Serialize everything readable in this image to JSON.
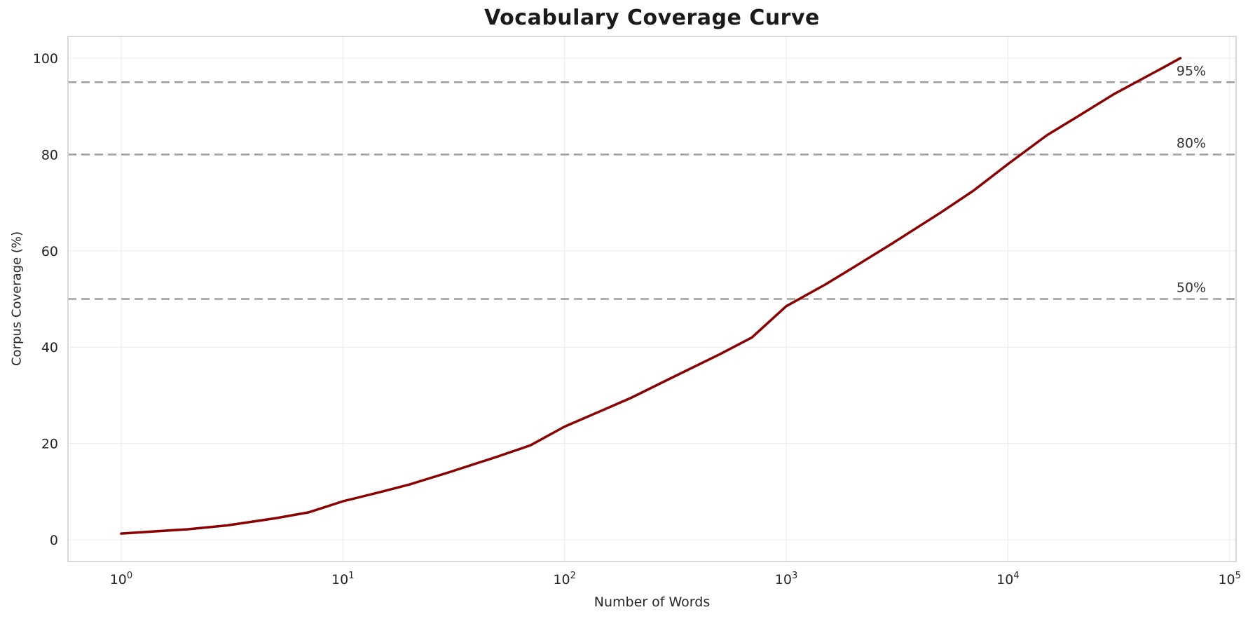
{
  "figure": {
    "title": "Vocabulary Coverage Curve"
  },
  "chart_data": {
    "type": "line",
    "title": "Vocabulary Coverage Curve",
    "xlabel": "Number of Words",
    "ylabel": "Corpus Coverage (%)",
    "x_scale": "log",
    "xlim": [
      0.5754,
      107000
    ],
    "ylim": [
      -4.5,
      104.5
    ],
    "x_ticks": [
      1,
      10,
      100,
      1000,
      10000,
      100000
    ],
    "y_ticks": [
      0,
      20,
      40,
      60,
      80,
      100
    ],
    "grid": true,
    "legend": false,
    "series": [
      {
        "name": "vocabulary-coverage",
        "color": "#8B0000",
        "width": 3.5,
        "x": [
          1,
          2,
          3,
          5,
          7,
          10,
          15,
          20,
          30,
          50,
          70,
          100,
          150,
          200,
          300,
          500,
          700,
          1000,
          1500,
          2000,
          3000,
          5000,
          7000,
          10000,
          15000,
          20000,
          30000,
          50000,
          60000
        ],
        "y": [
          1.3,
          2.2,
          3.0,
          4.5,
          5.7,
          8.0,
          10.0,
          11.5,
          14.0,
          17.3,
          19.6,
          23.5,
          27.0,
          29.5,
          33.5,
          38.5,
          42.0,
          48.5,
          53.0,
          56.5,
          61.5,
          68.0,
          72.5,
          78.0,
          84.0,
          87.5,
          92.5,
          98.0,
          100.0
        ]
      }
    ],
    "thresholds": [
      {
        "value": 50,
        "label": "50%"
      },
      {
        "value": 80,
        "label": "80%"
      },
      {
        "value": 95,
        "label": "95%"
      }
    ],
    "threshold_style": {
      "color": "#9e9e9e",
      "dash": "12 7",
      "width": 2.5
    },
    "colors": {
      "curve": "#8B0000",
      "grid": "#ececec",
      "spine": "#cccccc",
      "tick_label": "#262626"
    }
  }
}
